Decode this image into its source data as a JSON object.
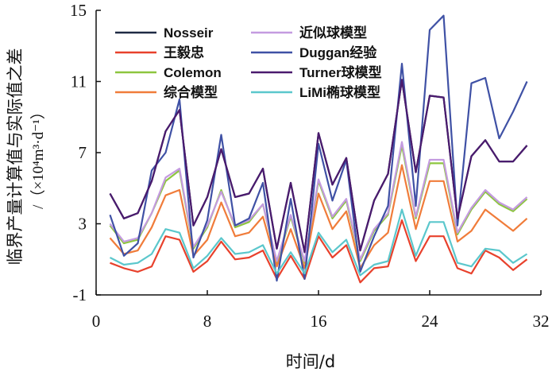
{
  "chart_data": {
    "type": "line",
    "title": "",
    "xlabel": "时间/d",
    "ylabel": "临界产量计算值与实际值之差",
    "yunit": "/（×10⁴m³·d⁻¹）",
    "xlim": [
      0,
      32
    ],
    "ylim": [
      -1,
      15
    ],
    "xticks": [
      0,
      8,
      16,
      24,
      32
    ],
    "yticks": [
      -1,
      3,
      7,
      11,
      15
    ],
    "grid": false,
    "legend_position": "top",
    "x": [
      1,
      2,
      3,
      4,
      5,
      6,
      7,
      8,
      9,
      10,
      11,
      12,
      13,
      14,
      15,
      16,
      17,
      18,
      19,
      20,
      21,
      22,
      23,
      24,
      25,
      26,
      27,
      28,
      29,
      30,
      31
    ],
    "series": [
      {
        "name": "Nosseir",
        "color": "#1f2a44",
        "values": [
          4.7,
          3.3,
          3.6,
          5.4,
          8.2,
          9.4,
          2.9,
          4.5,
          7.2,
          4.5,
          4.7,
          6.1,
          1.6,
          5.3,
          1.4,
          8.1,
          5.2,
          6.7,
          1.5,
          4.3,
          5.8,
          11.1,
          5.9,
          10.2,
          10.1,
          3.3,
          6.8,
          7.7,
          6.5,
          6.5,
          7.4
        ]
      },
      {
        "name": "王毅忠",
        "color": "#e8412c",
        "values": [
          0.8,
          0.5,
          0.3,
          0.6,
          2.3,
          2.1,
          0.3,
          0.9,
          2.0,
          1.0,
          1.1,
          1.5,
          -0.1,
          1.2,
          -0.1,
          2.3,
          1.1,
          1.8,
          -0.3,
          0.5,
          0.6,
          3.2,
          0.9,
          2.3,
          2.3,
          0.5,
          0.2,
          1.5,
          1.1,
          0.4,
          1.0
        ]
      },
      {
        "name": "Colemon",
        "color": "#8dc63f",
        "values": [
          2.9,
          1.9,
          2.1,
          3.6,
          5.4,
          6.0,
          1.6,
          2.8,
          4.9,
          2.8,
          3.1,
          4.1,
          0.8,
          3.4,
          0.8,
          5.4,
          3.3,
          4.3,
          0.9,
          2.6,
          3.5,
          7.4,
          3.3,
          6.4,
          6.4,
          2.4,
          3.8,
          4.8,
          4.1,
          3.7,
          4.4
        ]
      },
      {
        "name": "综合模型",
        "color": "#f07c3a",
        "values": [
          2.2,
          1.3,
          1.5,
          2.8,
          4.6,
          4.9,
          1.2,
          2.1,
          4.2,
          2.3,
          2.5,
          3.4,
          0.6,
          2.7,
          0.5,
          4.7,
          2.7,
          3.7,
          0.5,
          1.8,
          2.5,
          6.3,
          2.7,
          5.4,
          5.4,
          2.0,
          2.6,
          3.8,
          3.2,
          2.6,
          3.3
        ]
      },
      {
        "name": "近似球模型",
        "color": "#c49be0",
        "values": [
          3.0,
          2.0,
          2.2,
          3.6,
          5.6,
          6.1,
          1.7,
          2.9,
          4.8,
          2.9,
          3.2,
          4.1,
          0.9,
          3.5,
          0.9,
          5.5,
          3.4,
          4.4,
          1.0,
          2.7,
          3.6,
          7.6,
          3.4,
          6.6,
          6.6,
          2.5,
          3.9,
          4.9,
          4.2,
          3.8,
          4.5
        ]
      },
      {
        "name": "Duggan经验",
        "color": "#3f51a5",
        "values": [
          3.5,
          1.2,
          1.9,
          6.0,
          7.0,
          10.0,
          1.1,
          3.2,
          8.0,
          2.9,
          3.3,
          5.3,
          -0.2,
          4.4,
          -0.1,
          7.5,
          4.3,
          6.6,
          0.3,
          2.3,
          4.0,
          12.0,
          4.0,
          13.9,
          14.7,
          2.9,
          10.9,
          11.2,
          7.8,
          9.3,
          11.0
        ]
      },
      {
        "name": "Turner球模型",
        "color": "#4a1a6e",
        "values": [
          4.7,
          3.3,
          3.6,
          5.4,
          8.2,
          9.4,
          2.9,
          4.5,
          7.2,
          4.5,
          4.7,
          6.1,
          1.6,
          5.3,
          1.4,
          8.1,
          5.2,
          6.7,
          1.5,
          4.3,
          5.8,
          11.1,
          5.9,
          10.2,
          10.1,
          3.3,
          6.8,
          7.7,
          6.5,
          6.5,
          7.4
        ]
      },
      {
        "name": "LiMi椭球模型",
        "color": "#5bc7cc",
        "values": [
          1.1,
          0.7,
          0.8,
          1.3,
          2.7,
          2.5,
          0.5,
          1.2,
          2.2,
          1.3,
          1.4,
          1.8,
          0.2,
          1.4,
          0.2,
          2.5,
          1.4,
          2.1,
          0.1,
          0.7,
          0.9,
          3.8,
          1.2,
          3.1,
          3.1,
          0.8,
          0.6,
          1.6,
          1.5,
          0.8,
          1.3
        ]
      }
    ]
  }
}
